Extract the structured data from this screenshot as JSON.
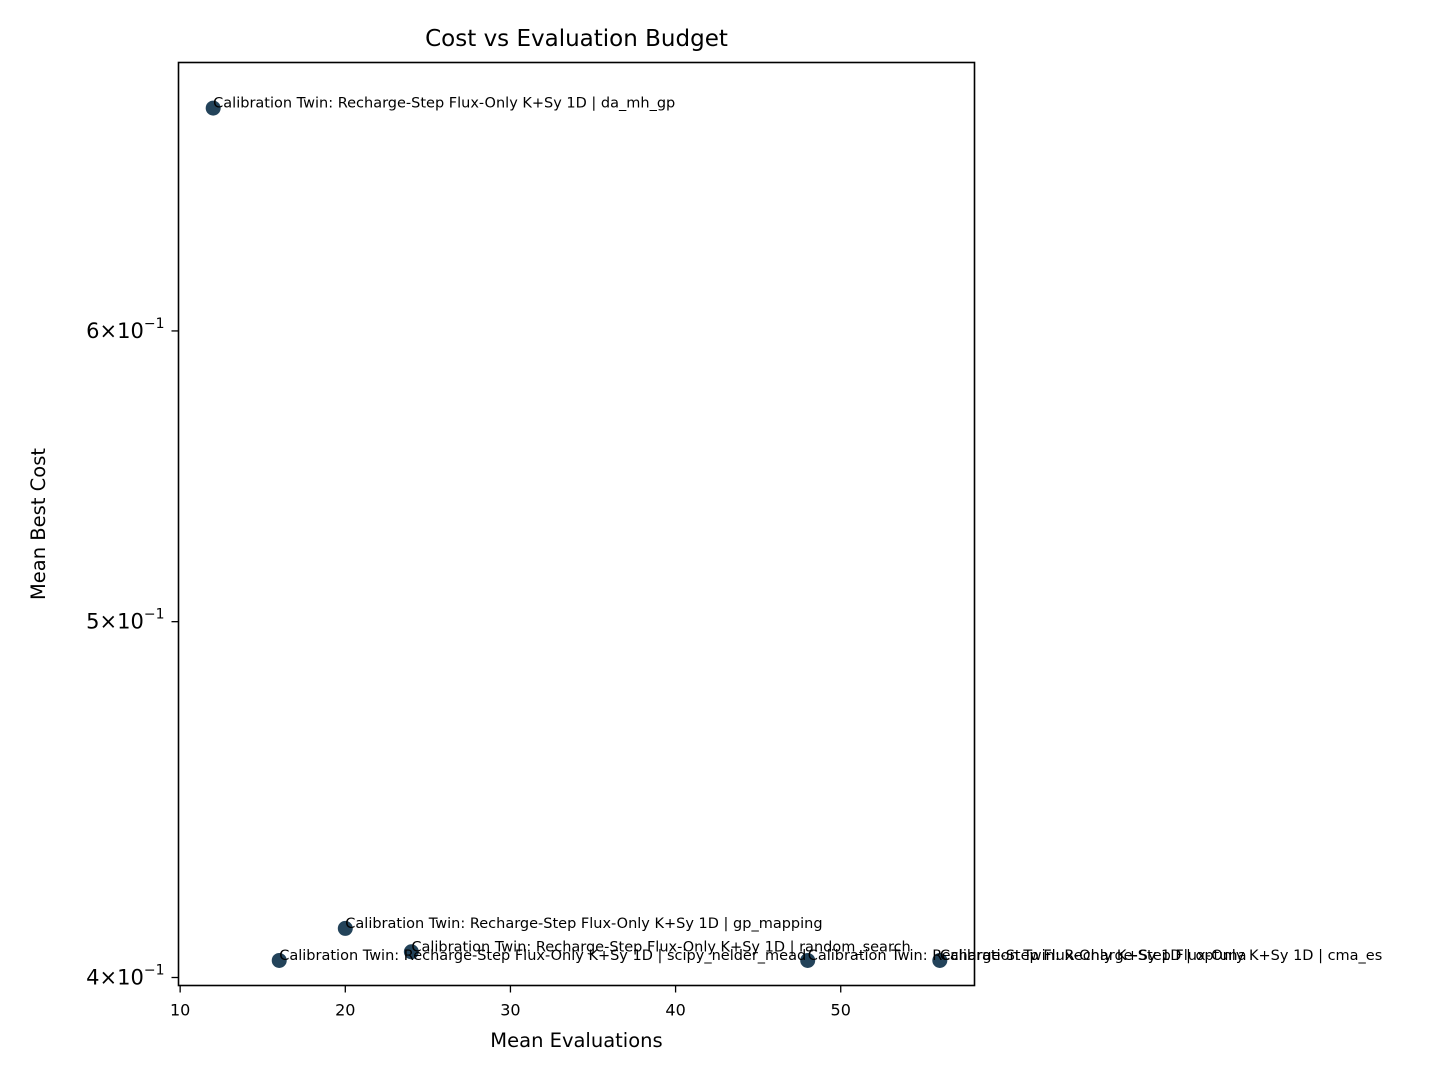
{
  "chart_data": {
    "type": "scatter",
    "title": "Cost vs Evaluation Budget",
    "xlabel": "Mean Evaluations",
    "ylabel": "Mean Best Cost",
    "xlim": [
      9.9,
      58.1
    ],
    "ylim": [
      0.398,
      0.71
    ],
    "yscale": "log",
    "grid": false,
    "marker_color": "#23435a",
    "x_ticks": [
      {
        "value": 10,
        "label": "10"
      },
      {
        "value": 20,
        "label": "20"
      },
      {
        "value": 30,
        "label": "30"
      },
      {
        "value": 40,
        "label": "40"
      },
      {
        "value": 50,
        "label": "50"
      }
    ],
    "y_ticks": [
      {
        "value": 0.4,
        "mantissa": "4",
        "base": "10",
        "exponent": "−1"
      },
      {
        "value": 0.5,
        "mantissa": "5",
        "base": "10",
        "exponent": "−1"
      },
      {
        "value": 0.6,
        "mantissa": "6",
        "base": "10",
        "exponent": "−1"
      }
    ],
    "points": [
      {
        "x": 12,
        "y": 0.69,
        "label": "Calibration Twin: Recharge-Step Flux-Only K+Sy 1D | da_mh_gp"
      },
      {
        "x": 20,
        "y": 0.4125,
        "label": "Calibration Twin: Recharge-Step Flux-Only K+Sy 1D | gp_mapping"
      },
      {
        "x": 24,
        "y": 0.4065,
        "label": "Calibration Twin: Recharge-Step Flux-Only K+Sy 1D | random_search"
      },
      {
        "x": 16,
        "y": 0.4043,
        "label": "Calibration Twin: Recharge-Step Flux-Only K+Sy 1D | scipy_nelder_mead"
      },
      {
        "x": 48,
        "y": 0.4043,
        "label": "Calibration Twin: Recharge-Step Flux-Only K+Sy 1D | optuna"
      },
      {
        "x": 56,
        "y": 0.4043,
        "label": "Calibration Twin: Recharge-Step Flux-Only K+Sy 1D | cma_es"
      }
    ]
  }
}
